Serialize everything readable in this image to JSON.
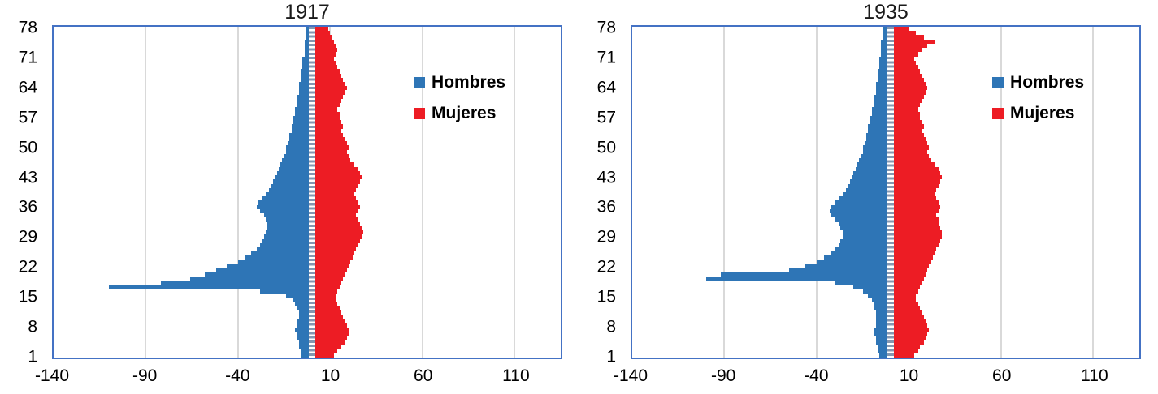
{
  "chart_data": [
    {
      "type": "bar",
      "orientation": "horizontal",
      "title": "1917",
      "xlabel": "",
      "ylabel": "",
      "xlim": [
        -140,
        135
      ],
      "x_ticks": [
        -140,
        -90,
        -40,
        10,
        60,
        110
      ],
      "y_tick_labels": [
        1,
        8,
        15,
        22,
        29,
        36,
        43,
        50,
        57,
        64,
        71,
        78
      ],
      "gridlines": true,
      "legend_position": "inside-right",
      "plot_border_color": "#4472C4",
      "gridline_color": "#D9D9D9",
      "zero_axis_color": "#8496B0",
      "categories": [
        1,
        2,
        3,
        4,
        5,
        6,
        7,
        8,
        9,
        10,
        11,
        12,
        13,
        14,
        15,
        16,
        17,
        18,
        19,
        20,
        21,
        22,
        23,
        24,
        25,
        26,
        27,
        28,
        29,
        30,
        31,
        32,
        33,
        34,
        35,
        36,
        37,
        38,
        39,
        40,
        41,
        42,
        43,
        44,
        45,
        46,
        47,
        48,
        49,
        50,
        51,
        52,
        53,
        54,
        55,
        56,
        57,
        58,
        59,
        60,
        61,
        62,
        63,
        64,
        65,
        66,
        67,
        68,
        69,
        70,
        71,
        72,
        73,
        74,
        75,
        76,
        77,
        78
      ],
      "series": [
        {
          "name": "Hombres",
          "color": "#2E75B6",
          "values": [
            -6,
            -6,
            -7,
            -7,
            -8,
            -8,
            -9,
            -8,
            -8,
            -7,
            -7,
            -8,
            -9,
            -10,
            -14,
            -28,
            -110,
            -82,
            -66,
            -58,
            -52,
            -46,
            -40,
            -36,
            -33,
            -30,
            -28,
            -27,
            -26,
            -25,
            -24,
            -24,
            -25,
            -26,
            -28,
            -30,
            -29,
            -27,
            -25,
            -23,
            -22,
            -21,
            -20,
            -19,
            -18,
            -17,
            -16,
            -15,
            -14,
            -14,
            -13,
            -12,
            -12,
            -11,
            -11,
            -10,
            -10,
            -9,
            -9,
            -8,
            -8,
            -8,
            -7,
            -7,
            -7,
            -6,
            -6,
            -6,
            -5,
            -5,
            -5,
            -4,
            -4,
            -4,
            -4,
            -3,
            -3,
            -3
          ]
        },
        {
          "name": "Mujeres",
          "color": "#ED1C24",
          "values": [
            12,
            14,
            16,
            18,
            19,
            20,
            20,
            19,
            18,
            17,
            16,
            15,
            14,
            13,
            13,
            14,
            15,
            16,
            17,
            18,
            19,
            20,
            21,
            22,
            23,
            24,
            25,
            26,
            27,
            28,
            27,
            26,
            25,
            24,
            25,
            26,
            25,
            24,
            23,
            24,
            25,
            26,
            27,
            26,
            25,
            23,
            21,
            20,
            19,
            20,
            19,
            18,
            17,
            16,
            17,
            16,
            15,
            15,
            14,
            15,
            16,
            17,
            18,
            19,
            18,
            17,
            16,
            15,
            14,
            13,
            12,
            13,
            14,
            13,
            12,
            11,
            10,
            9
          ]
        }
      ]
    },
    {
      "type": "bar",
      "orientation": "horizontal",
      "title": "1935",
      "xlabel": "",
      "ylabel": "",
      "xlim": [
        -140,
        135
      ],
      "x_ticks": [
        -140,
        -90,
        -40,
        10,
        60,
        110
      ],
      "y_tick_labels": [
        1,
        8,
        15,
        22,
        29,
        36,
        43,
        50,
        57,
        64,
        71,
        78
      ],
      "gridlines": true,
      "legend_position": "inside-right",
      "plot_border_color": "#4472C4",
      "gridline_color": "#D9D9D9",
      "zero_axis_color": "#8496B0",
      "categories": [
        1,
        2,
        3,
        4,
        5,
        6,
        7,
        8,
        9,
        10,
        11,
        12,
        13,
        14,
        15,
        16,
        17,
        18,
        19,
        20,
        21,
        22,
        23,
        24,
        25,
        26,
        27,
        28,
        29,
        30,
        31,
        32,
        33,
        34,
        35,
        36,
        37,
        38,
        39,
        40,
        41,
        42,
        43,
        44,
        45,
        46,
        47,
        48,
        49,
        50,
        51,
        52,
        53,
        54,
        55,
        56,
        57,
        58,
        59,
        60,
        61,
        62,
        63,
        64,
        65,
        66,
        67,
        68,
        69,
        70,
        71,
        72,
        73,
        74,
        75,
        76,
        77,
        78
      ],
      "series": [
        {
          "name": "Hombres",
          "color": "#2E75B6",
          "values": [
            -6,
            -7,
            -7,
            -8,
            -8,
            -9,
            -9,
            -8,
            -8,
            -8,
            -8,
            -9,
            -9,
            -10,
            -12,
            -15,
            -20,
            -30,
            -100,
            -92,
            -55,
            -46,
            -40,
            -36,
            -32,
            -30,
            -28,
            -27,
            -26,
            -26,
            -27,
            -28,
            -30,
            -32,
            -33,
            -32,
            -30,
            -28,
            -26,
            -24,
            -23,
            -22,
            -21,
            -20,
            -19,
            -18,
            -17,
            -16,
            -15,
            -15,
            -14,
            -13,
            -13,
            -12,
            -12,
            -11,
            -11,
            -10,
            -10,
            -9,
            -9,
            -9,
            -8,
            -8,
            -8,
            -7,
            -7,
            -7,
            -6,
            -6,
            -6,
            -5,
            -5,
            -5,
            -5,
            -4,
            -4,
            -4
          ]
        },
        {
          "name": "Mujeres",
          "color": "#ED1C24",
          "values": [
            13,
            15,
            16,
            18,
            19,
            20,
            21,
            20,
            19,
            18,
            17,
            16,
            15,
            14,
            14,
            15,
            16,
            17,
            18,
            19,
            20,
            21,
            22,
            23,
            24,
            25,
            26,
            27,
            28,
            28,
            27,
            26,
            26,
            25,
            26,
            27,
            26,
            25,
            24,
            25,
            26,
            27,
            28,
            27,
            26,
            24,
            22,
            21,
            20,
            21,
            20,
            19,
            18,
            17,
            18,
            17,
            16,
            16,
            15,
            16,
            17,
            18,
            19,
            20,
            19,
            18,
            17,
            16,
            15,
            14,
            13,
            15,
            17,
            20,
            24,
            18,
            14,
            10
          ]
        }
      ]
    }
  ]
}
